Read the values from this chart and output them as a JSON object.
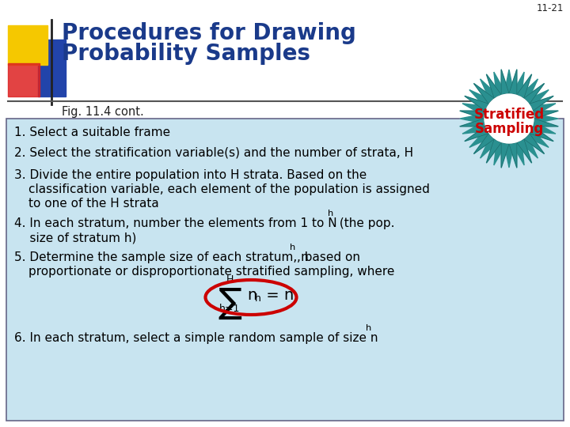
{
  "bg_color": "#ffffff",
  "content_bg": "#c8e4f0",
  "title_text_line1": "Procedures for Drawing",
  "title_text_line2": "Probability Samples",
  "title_color": "#1a3a8a",
  "slide_number": "11-21",
  "fig_label": "Fig. 11.4 cont.",
  "stratified_line1": "Stratified",
  "stratified_line2": "Sampling",
  "stratified_color": "#cc0000",
  "starburst_color": "#2a9090",
  "starburst_color2": "#aadddd",
  "logo_yellow": "#f5c800",
  "logo_red": "#dd2222",
  "logo_blue": "#2244aa",
  "separator_color": "#555555",
  "item_color": "#000000",
  "item_fontsize": 11.0,
  "formula_color": "#000000",
  "oval_color": "#cc0000",
  "content_border": "#666688"
}
